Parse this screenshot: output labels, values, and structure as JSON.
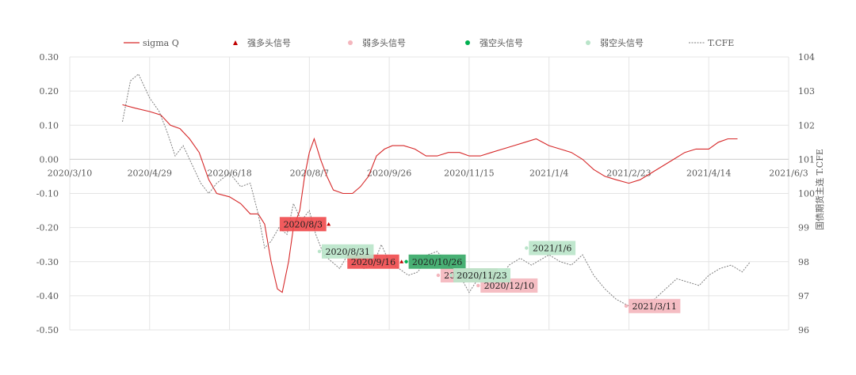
{
  "chart_data": {
    "type": "line",
    "title": "",
    "xlabel": "",
    "ylabel": "",
    "y2label": "国债期货主连 T.CFE",
    "ylim": [
      -0.5,
      0.3
    ],
    "y2lim": [
      96,
      104
    ],
    "y_ticks": [
      "0.30",
      "0.20",
      "0.10",
      "0.00",
      "-0.10",
      "-0.20",
      "-0.30",
      "-0.40",
      "-0.50"
    ],
    "y2_ticks": [
      "104",
      "103",
      "102",
      "101",
      "100",
      "99",
      "98",
      "97",
      "96"
    ],
    "x_range": [
      "2020-03-10",
      "2021-06-03"
    ],
    "x_tick_labels": [
      "2020/3/10",
      "2020/4/29",
      "2020/6/18",
      "2020/8/7",
      "2020/9/26",
      "2020/11/15",
      "2021/1/4",
      "2021/2/23",
      "2021/4/14",
      "2021/6/3"
    ],
    "x_tick_dates": [
      "2020-03-10",
      "2020-04-29",
      "2020-06-18",
      "2020-08-07",
      "2020-09-26",
      "2020-11-15",
      "2021-01-04",
      "2021-02-23",
      "2021-04-14",
      "2021-06-03"
    ],
    "grid": true,
    "legend_position": "top",
    "legend": [
      "sigma Q",
      "强多头信号",
      "弱多头信号",
      "强空头信号",
      "弱空头信号",
      "T.CFE"
    ],
    "series": [
      {
        "name": "sigma Q",
        "axis": "left",
        "color": "#d62728",
        "points": [
          [
            "2020-04-12",
            0.16
          ],
          [
            "2020-04-20",
            0.15
          ],
          [
            "2020-04-29",
            0.14
          ],
          [
            "2020-05-06",
            0.13
          ],
          [
            "2020-05-12",
            0.1
          ],
          [
            "2020-05-18",
            0.09
          ],
          [
            "2020-05-24",
            0.06
          ],
          [
            "2020-05-30",
            0.02
          ],
          [
            "2020-06-05",
            -0.06
          ],
          [
            "2020-06-10",
            -0.1
          ],
          [
            "2020-06-18",
            -0.11
          ],
          [
            "2020-06-25",
            -0.13
          ],
          [
            "2020-07-01",
            -0.16
          ],
          [
            "2020-07-06",
            -0.16
          ],
          [
            "2020-07-10",
            -0.19
          ],
          [
            "2020-07-14",
            -0.3
          ],
          [
            "2020-07-18",
            -0.38
          ],
          [
            "2020-07-21",
            -0.39
          ],
          [
            "2020-07-25",
            -0.3
          ],
          [
            "2020-07-28",
            -0.2
          ],
          [
            "2020-08-01",
            -0.15
          ],
          [
            "2020-08-04",
            -0.05
          ],
          [
            "2020-08-07",
            0.02
          ],
          [
            "2020-08-10",
            0.06
          ],
          [
            "2020-08-14",
            0.0
          ],
          [
            "2020-08-18",
            -0.05
          ],
          [
            "2020-08-22",
            -0.09
          ],
          [
            "2020-08-28",
            -0.1
          ],
          [
            "2020-09-03",
            -0.1
          ],
          [
            "2020-09-08",
            -0.08
          ],
          [
            "2020-09-13",
            -0.05
          ],
          [
            "2020-09-18",
            0.01
          ],
          [
            "2020-09-23",
            0.03
          ],
          [
            "2020-09-28",
            0.04
          ],
          [
            "2020-10-05",
            0.04
          ],
          [
            "2020-10-12",
            0.03
          ],
          [
            "2020-10-19",
            0.01
          ],
          [
            "2020-10-26",
            0.01
          ],
          [
            "2020-11-02",
            0.02
          ],
          [
            "2020-11-09",
            0.02
          ],
          [
            "2020-11-15",
            0.01
          ],
          [
            "2020-11-22",
            0.01
          ],
          [
            "2020-11-29",
            0.02
          ],
          [
            "2020-12-06",
            0.03
          ],
          [
            "2020-12-13",
            0.04
          ],
          [
            "2020-12-20",
            0.05
          ],
          [
            "2020-12-27",
            0.06
          ],
          [
            "2021-01-04",
            0.04
          ],
          [
            "2021-01-11",
            0.03
          ],
          [
            "2021-01-18",
            0.02
          ],
          [
            "2021-01-25",
            0.0
          ],
          [
            "2021-02-01",
            -0.03
          ],
          [
            "2021-02-08",
            -0.05
          ],
          [
            "2021-02-15",
            -0.06
          ],
          [
            "2021-02-23",
            -0.07
          ],
          [
            "2021-03-02",
            -0.06
          ],
          [
            "2021-03-09",
            -0.04
          ],
          [
            "2021-03-16",
            -0.02
          ],
          [
            "2021-03-23",
            0.0
          ],
          [
            "2021-03-30",
            0.02
          ],
          [
            "2021-04-06",
            0.03
          ],
          [
            "2021-04-14",
            0.03
          ],
          [
            "2021-04-20",
            0.05
          ],
          [
            "2021-04-26",
            0.06
          ],
          [
            "2021-05-02",
            0.06
          ]
        ]
      },
      {
        "name": "T.CFE",
        "axis": "right",
        "color": "#7f7f7f",
        "dashed": true,
        "points": [
          [
            "2020-04-12",
            102.1
          ],
          [
            "2020-04-17",
            103.3
          ],
          [
            "2020-04-22",
            103.5
          ],
          [
            "2020-04-29",
            102.8
          ],
          [
            "2020-05-05",
            102.4
          ],
          [
            "2020-05-10",
            101.8
          ],
          [
            "2020-05-15",
            101.1
          ],
          [
            "2020-05-20",
            101.4
          ],
          [
            "2020-05-25",
            100.9
          ],
          [
            "2020-05-31",
            100.3
          ],
          [
            "2020-06-05",
            100.0
          ],
          [
            "2020-06-10",
            100.3
          ],
          [
            "2020-06-18",
            100.6
          ],
          [
            "2020-06-25",
            100.2
          ],
          [
            "2020-07-01",
            100.3
          ],
          [
            "2020-07-06",
            99.4
          ],
          [
            "2020-07-10",
            98.4
          ],
          [
            "2020-07-14",
            98.6
          ],
          [
            "2020-07-19",
            99.0
          ],
          [
            "2020-07-24",
            98.8
          ],
          [
            "2020-07-28",
            99.7
          ],
          [
            "2020-08-02",
            99.2
          ],
          [
            "2020-08-07",
            99.5
          ],
          [
            "2020-08-11",
            98.8
          ],
          [
            "2020-08-16",
            98.2
          ],
          [
            "2020-08-21",
            98.0
          ],
          [
            "2020-08-26",
            97.8
          ],
          [
            "2020-08-31",
            98.2
          ],
          [
            "2020-09-05",
            98.1
          ],
          [
            "2020-09-10",
            97.8
          ],
          [
            "2020-09-16",
            97.9
          ],
          [
            "2020-09-21",
            98.5
          ],
          [
            "2020-09-26",
            98.0
          ],
          [
            "2020-10-02",
            97.8
          ],
          [
            "2020-10-08",
            97.6
          ],
          [
            "2020-10-14",
            97.7
          ],
          [
            "2020-10-20",
            98.2
          ],
          [
            "2020-10-26",
            98.3
          ],
          [
            "2020-11-02",
            97.9
          ],
          [
            "2020-11-09",
            97.6
          ],
          [
            "2020-11-15",
            97.1
          ],
          [
            "2020-11-22",
            97.6
          ],
          [
            "2020-11-28",
            97.8
          ],
          [
            "2020-12-04",
            97.5
          ],
          [
            "2020-12-10",
            97.9
          ],
          [
            "2020-12-17",
            98.1
          ],
          [
            "2020-12-24",
            97.9
          ],
          [
            "2021-01-04",
            98.2
          ],
          [
            "2021-01-11",
            98.0
          ],
          [
            "2021-01-18",
            97.9
          ],
          [
            "2021-01-25",
            98.2
          ],
          [
            "2021-02-01",
            97.6
          ],
          [
            "2021-02-08",
            97.2
          ],
          [
            "2021-02-15",
            96.9
          ],
          [
            "2021-02-23",
            96.7
          ],
          [
            "2021-03-02",
            96.8
          ],
          [
            "2021-03-11",
            96.9
          ],
          [
            "2021-03-18",
            97.2
          ],
          [
            "2021-03-25",
            97.5
          ],
          [
            "2021-04-01",
            97.4
          ],
          [
            "2021-04-08",
            97.3
          ],
          [
            "2021-04-14",
            97.6
          ],
          [
            "2021-04-21",
            97.8
          ],
          [
            "2021-04-28",
            97.9
          ],
          [
            "2021-05-05",
            97.7
          ],
          [
            "2021-05-10",
            98.0
          ]
        ]
      }
    ],
    "signals": [
      {
        "name": "强多头信号",
        "color": "#f0494b",
        "marker_color": "#c00000",
        "marker": "triangle",
        "points": [
          {
            "date": "2020-08-03",
            "value": -0.19,
            "label": "2020/8/3"
          },
          {
            "date": "2020-09-16",
            "value": -0.3,
            "label": "2020/9/16"
          }
        ]
      },
      {
        "name": "弱多头信号",
        "color": "#f4b6bd",
        "marker_color": "#f4b6bd",
        "marker": "circle",
        "points": [
          {
            "date": "2020-11-15",
            "value": -0.34,
            "label": "2020/11/15"
          },
          {
            "date": "2020-12-10",
            "value": -0.37,
            "label": "2020/12/10"
          },
          {
            "date": "2021-03-11",
            "value": -0.43,
            "label": "2021/3/11"
          }
        ]
      },
      {
        "name": "强空头信号",
        "color": "#34a765",
        "marker_color": "#00b050",
        "marker": "circle",
        "points": [
          {
            "date": "2020-10-26",
            "value": -0.3,
            "label": "2020/10/26"
          }
        ]
      },
      {
        "name": "弱空头信号",
        "color": "#b9e4c9",
        "marker_color": "#b9e4c9",
        "marker": "circle",
        "points": [
          {
            "date": "2020-08-31",
            "value": -0.27,
            "label": "2020/8/31"
          },
          {
            "date": "2020-11-23",
            "value": -0.34,
            "label": "2020/11/23"
          },
          {
            "date": "2021-01-06",
            "value": -0.26,
            "label": "2021/1/6"
          }
        ]
      }
    ]
  }
}
